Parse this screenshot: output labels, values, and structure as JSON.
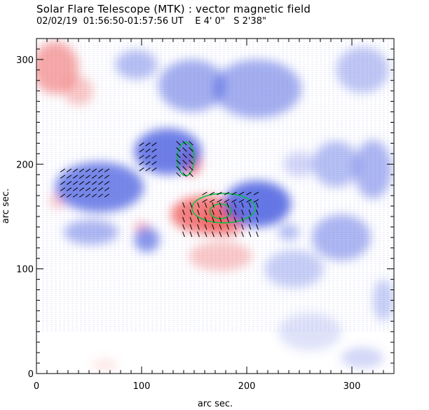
{
  "chart_data": {
    "type": "heatmap",
    "title": "Solar Flare Telescope (MTK) : vector magnetic field",
    "subtitle": "02/02/19  01:56:50-01:57:56 UT    E 4' 0\"   S 2'38\"",
    "xlabel": "arc sec.",
    "ylabel": "arc sec.",
    "xlim": [
      0,
      340
    ],
    "ylim": [
      0,
      320
    ],
    "x_ticks": [
      0,
      100,
      200,
      300
    ],
    "y_ticks": [
      0,
      100,
      200,
      300
    ],
    "colors": {
      "positive": "#f06060",
      "negative": "#4a5fe0",
      "contour": "#00c040",
      "vectors": "#000000"
    },
    "field_regions": [
      {
        "polarity": "positive",
        "x": 18,
        "y": 292,
        "rx": 22,
        "ry": 25,
        "strength": 0.55
      },
      {
        "polarity": "positive",
        "x": 40,
        "y": 270,
        "rx": 14,
        "ry": 14,
        "strength": 0.35
      },
      {
        "polarity": "positive",
        "x": 160,
        "y": 152,
        "rx": 32,
        "ry": 18,
        "strength": 0.8
      },
      {
        "polarity": "positive",
        "x": 178,
        "y": 146,
        "rx": 22,
        "ry": 14,
        "strength": 0.7
      },
      {
        "polarity": "positive",
        "x": 147,
        "y": 202,
        "rx": 10,
        "ry": 13,
        "strength": 0.75
      },
      {
        "polarity": "positive",
        "x": 175,
        "y": 112,
        "rx": 30,
        "ry": 14,
        "strength": 0.35
      },
      {
        "polarity": "positive",
        "x": 100,
        "y": 140,
        "rx": 8,
        "ry": 6,
        "strength": 0.35
      },
      {
        "polarity": "positive",
        "x": 20,
        "y": 165,
        "rx": 8,
        "ry": 8,
        "strength": 0.3
      },
      {
        "polarity": "positive",
        "x": 65,
        "y": 8,
        "rx": 12,
        "ry": 6,
        "strength": 0.15
      },
      {
        "polarity": "negative",
        "x": 125,
        "y": 212,
        "rx": 32,
        "ry": 22,
        "strength": 0.8
      },
      {
        "polarity": "negative",
        "x": 60,
        "y": 178,
        "rx": 42,
        "ry": 24,
        "strength": 0.75
      },
      {
        "polarity": "negative",
        "x": 210,
        "y": 162,
        "rx": 32,
        "ry": 22,
        "strength": 0.85
      },
      {
        "polarity": "negative",
        "x": 148,
        "y": 275,
        "rx": 32,
        "ry": 25,
        "strength": 0.5
      },
      {
        "polarity": "negative",
        "x": 210,
        "y": 272,
        "rx": 42,
        "ry": 28,
        "strength": 0.5
      },
      {
        "polarity": "negative",
        "x": 95,
        "y": 295,
        "rx": 20,
        "ry": 14,
        "strength": 0.4
      },
      {
        "polarity": "negative",
        "x": 105,
        "y": 128,
        "rx": 12,
        "ry": 12,
        "strength": 0.65
      },
      {
        "polarity": "negative",
        "x": 52,
        "y": 135,
        "rx": 26,
        "ry": 12,
        "strength": 0.45
      },
      {
        "polarity": "negative",
        "x": 285,
        "y": 200,
        "rx": 22,
        "ry": 22,
        "strength": 0.4
      },
      {
        "polarity": "negative",
        "x": 320,
        "y": 195,
        "rx": 18,
        "ry": 28,
        "strength": 0.45
      },
      {
        "polarity": "negative",
        "x": 290,
        "y": 130,
        "rx": 28,
        "ry": 22,
        "strength": 0.45
      },
      {
        "polarity": "negative",
        "x": 245,
        "y": 100,
        "rx": 28,
        "ry": 18,
        "strength": 0.3
      },
      {
        "polarity": "negative",
        "x": 310,
        "y": 290,
        "rx": 25,
        "ry": 22,
        "strength": 0.35
      },
      {
        "polarity": "negative",
        "x": 330,
        "y": 70,
        "rx": 10,
        "ry": 20,
        "strength": 0.3
      },
      {
        "polarity": "negative",
        "x": 250,
        "y": 200,
        "rx": 15,
        "ry": 12,
        "strength": 0.25
      },
      {
        "polarity": "negative",
        "x": 240,
        "y": 135,
        "rx": 10,
        "ry": 8,
        "strength": 0.4
      },
      {
        "polarity": "negative",
        "x": 260,
        "y": 40,
        "rx": 30,
        "ry": 18,
        "strength": 0.18
      },
      {
        "polarity": "negative",
        "x": 310,
        "y": 15,
        "rx": 20,
        "ry": 10,
        "strength": 0.25
      }
    ],
    "vector_groups": [
      {
        "x": [
          25,
          70
        ],
        "y": [
          170,
          195
        ],
        "step": 6,
        "angle": 35
      },
      {
        "x": [
          100,
          115
        ],
        "y": [
          195,
          220
        ],
        "step": 6,
        "angle": 35
      },
      {
        "x": [
          135,
          150
        ],
        "y": [
          190,
          222
        ],
        "step": 6,
        "angle": -45
      },
      {
        "x": [
          140,
          210
        ],
        "y": [
          133,
          165
        ],
        "step": 7,
        "angle": -70
      },
      {
        "x": [
          160,
          210
        ],
        "y": [
          165,
          177
        ],
        "step": 7,
        "angle": 30
      }
    ],
    "contours": [
      {
        "x": 142,
        "y": 205,
        "rx": 8,
        "ry": 16
      },
      {
        "x": 178,
        "y": 158,
        "rx": 30,
        "ry": 14
      },
      {
        "x": 175,
        "y": 155,
        "rx": 10,
        "ry": 7
      }
    ]
  }
}
